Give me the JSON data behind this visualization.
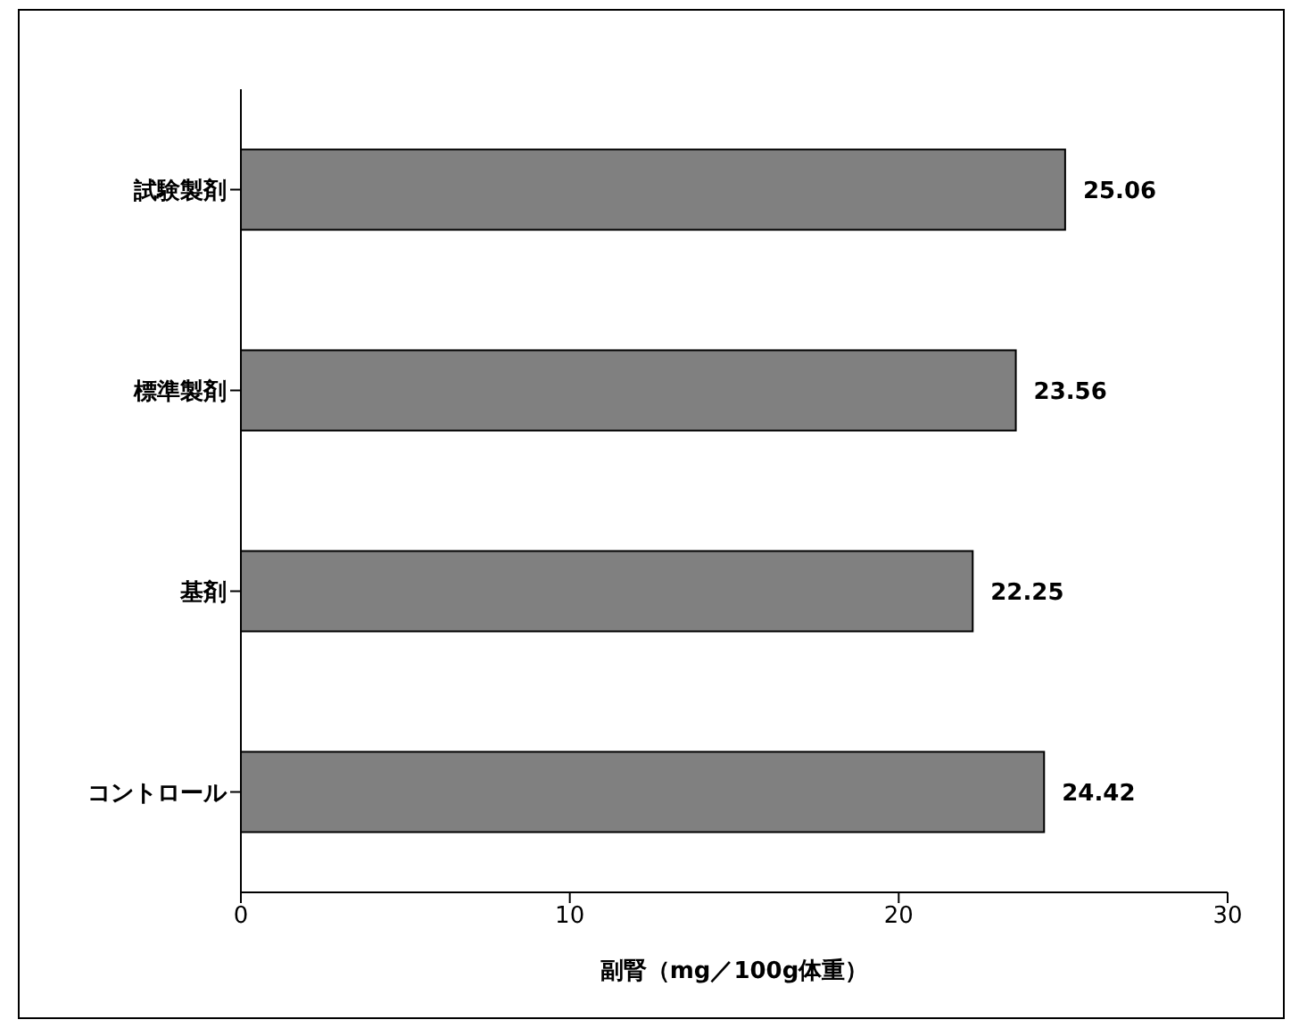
{
  "chart_data": {
    "type": "bar",
    "orientation": "horizontal",
    "categories": [
      "試験製剤",
      "標準製剤",
      "基剤",
      "コントロール"
    ],
    "values": [
      25.06,
      23.56,
      22.25,
      24.42
    ],
    "color": "#808080",
    "xlim": [
      0,
      30
    ],
    "xticks": [
      0,
      10,
      20,
      30
    ],
    "xlabel": "副腎（mg／100g体重）",
    "data_labels": true,
    "grid": false,
    "legend": false
  }
}
